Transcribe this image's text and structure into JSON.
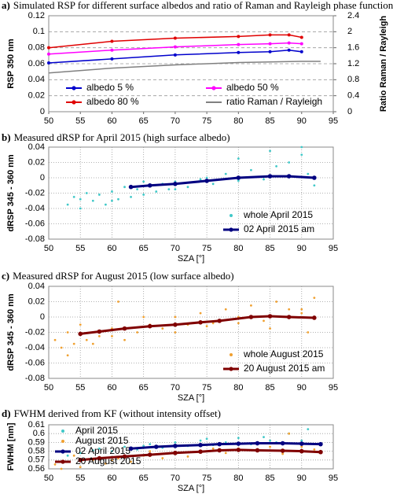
{
  "chart_data": [
    {
      "type": "line",
      "panel_label": "a)",
      "title": "Simulated RSP for different surface albedos and ratio of Raman and Rayleigh phase functions",
      "ylabel": "RSP 350 nm",
      "y2label": "Ratio Raman / Rayleigh",
      "xlim": [
        50,
        95
      ],
      "xticks": [
        50,
        55,
        60,
        65,
        70,
        75,
        80,
        85,
        90,
        95
      ],
      "ylim": [
        0,
        0.12
      ],
      "yticks": [
        0,
        0.02,
        0.04,
        0.06,
        0.08,
        0.1,
        0.12
      ],
      "y2lim": [
        0,
        2.4
      ],
      "y2ticks": [
        0,
        0.4,
        0.8,
        1.2,
        1.6,
        2,
        2.4
      ],
      "grid": "y",
      "legend": "lower center",
      "series": [
        {
          "name": "albedo 5 %",
          "color": "#0000cc",
          "style": "line",
          "markers": true,
          "x": [
            50,
            60,
            70,
            80,
            85,
            88,
            90
          ],
          "values": [
            0.061,
            0.066,
            0.071,
            0.074,
            0.075,
            0.077,
            0.075
          ]
        },
        {
          "name": "albedo 50 %",
          "color": "#ff00ff",
          "style": "line",
          "markers": true,
          "x": [
            50,
            60,
            70,
            80,
            85,
            88,
            90
          ],
          "values": [
            0.072,
            0.077,
            0.081,
            0.084,
            0.085,
            0.086,
            0.085
          ]
        },
        {
          "name": "albedo 80 %",
          "color": "#e00000",
          "style": "line",
          "markers": true,
          "x": [
            50,
            60,
            70,
            80,
            85,
            88,
            90
          ],
          "values": [
            0.08,
            0.088,
            0.092,
            0.094,
            0.096,
            0.096,
            0.093
          ]
        },
        {
          "name": "ratio Raman / Rayleigh",
          "color": "#808080",
          "style": "line",
          "markers": false,
          "axis": "y2",
          "x": [
            50,
            60,
            70,
            80,
            90,
            93
          ],
          "values": [
            0.97,
            1.09,
            1.17,
            1.23,
            1.26,
            1.26
          ]
        }
      ]
    },
    {
      "type": "scatter",
      "panel_label": "b)",
      "title": "Measured dRSP for April 2015 (high surface albedo)",
      "ylabel": "dRSP 345 - 360 nm",
      "xlabel": "SZA [°]",
      "xlim": [
        50,
        95
      ],
      "xticks": [
        50,
        55,
        60,
        65,
        70,
        75,
        80,
        85,
        90,
        95
      ],
      "ylim": [
        -0.08,
        0.04
      ],
      "yticks": [
        -0.08,
        -0.06,
        -0.04,
        -0.02,
        0,
        0.02,
        0.04
      ],
      "grid": "both",
      "legend": "lower right",
      "series": [
        {
          "name": "whole April 2015",
          "color": "#40c8c8",
          "style": "points",
          "x": [
            53,
            54,
            55,
            56,
            57,
            58,
            59,
            60,
            61,
            62,
            63,
            64,
            65,
            66,
            67,
            68,
            69,
            70,
            72,
            74,
            76,
            78,
            80,
            82,
            84,
            86,
            88,
            90,
            91,
            92,
            55,
            60,
            65,
            70,
            75,
            80,
            85,
            90
          ],
          "values": [
            -0.035,
            -0.025,
            -0.04,
            -0.02,
            -0.03,
            -0.022,
            -0.035,
            -0.018,
            -0.028,
            -0.012,
            -0.025,
            -0.015,
            -0.022,
            -0.01,
            -0.018,
            -0.008,
            -0.015,
            -0.005,
            -0.012,
            -0.002,
            -0.008,
            0.005,
            -0.004,
            0.01,
            -0.002,
            0.015,
            0.02,
            0.03,
            0.005,
            -0.01,
            -0.028,
            -0.03,
            -0.005,
            -0.015,
            0,
            0.025,
            0.035,
            0.04
          ]
        },
        {
          "name": "02 April 2015 am",
          "color": "#000080",
          "style": "line",
          "markers": true,
          "x": [
            63,
            66,
            70,
            75,
            80,
            85,
            88,
            92
          ],
          "values": [
            -0.012,
            -0.01,
            -0.008,
            -0.004,
            0,
            0.002,
            0.002,
            0
          ]
        }
      ]
    },
    {
      "type": "scatter",
      "panel_label": "c)",
      "title": "Measured dRSP for August 2015 (low surface albedo)",
      "ylabel": "dRSP 345 - 360 nm",
      "xlabel": "SZA [°]",
      "xlim": [
        50,
        95
      ],
      "xticks": [
        50,
        55,
        60,
        65,
        70,
        75,
        80,
        85,
        90,
        95
      ],
      "ylim": [
        -0.08,
        0.04
      ],
      "yticks": [
        -0.08,
        -0.06,
        -0.04,
        -0.02,
        0,
        0.02,
        0.04
      ],
      "grid": "both",
      "legend": "lower right",
      "series": [
        {
          "name": "whole August 2015",
          "color": "#f0a030",
          "style": "points",
          "x": [
            51,
            52,
            53,
            54,
            55,
            56,
            58,
            60,
            61,
            62,
            64,
            66,
            68,
            70,
            72,
            74,
            76,
            78,
            80,
            82,
            84,
            86,
            88,
            90,
            91,
            92,
            53,
            57,
            60,
            65,
            70,
            75,
            80,
            85,
            90
          ],
          "values": [
            -0.03,
            -0.04,
            -0.02,
            -0.035,
            -0.01,
            -0.03,
            -0.025,
            -0.015,
            0.02,
            -0.03,
            -0.02,
            -0.01,
            -0.015,
            0,
            -0.01,
            0.005,
            -0.008,
            0.01,
            0,
            0.015,
            -0.005,
            0.02,
            0.01,
            0.005,
            -0.02,
            0.025,
            -0.05,
            -0.035,
            -0.025,
            0,
            -0.02,
            -0.012,
            -0.008,
            -0.015,
            0.01
          ]
        },
        {
          "name": "20 August 2015 am",
          "color": "#800000",
          "style": "line",
          "markers": true,
          "x": [
            55,
            58,
            62,
            66,
            70,
            74,
            77,
            82,
            85,
            88,
            92
          ],
          "values": [
            -0.022,
            -0.019,
            -0.015,
            -0.012,
            -0.01,
            -0.007,
            -0.005,
            0,
            0.001,
            0,
            -0.001
          ]
        }
      ]
    },
    {
      "type": "scatter",
      "panel_label": "d)",
      "title": "FWHM derived from KF (without intensity offset)",
      "ylabel": "FWHM [nm]",
      "xlabel": "SZA [°]",
      "xlim": [
        50,
        95
      ],
      "xticks": [
        50,
        55,
        60,
        65,
        70,
        75,
        80,
        85,
        90,
        95
      ],
      "ylim": [
        0.56,
        0.61
      ],
      "yticks": [
        0.56,
        0.57,
        0.58,
        0.59,
        0.6,
        0.61
      ],
      "grid": "both",
      "legend": "upper left",
      "series": [
        {
          "name": "April 2015",
          "color": "#40c8c8",
          "style": "points",
          "x": [
            53,
            55,
            57,
            60,
            62,
            64,
            66,
            68,
            70,
            72,
            74,
            76,
            78,
            80,
            82,
            84,
            86,
            88,
            90,
            92,
            58,
            65,
            75,
            85,
            91
          ],
          "values": [
            0.575,
            0.578,
            0.581,
            0.58,
            0.585,
            0.582,
            0.588,
            0.584,
            0.59,
            0.586,
            0.592,
            0.587,
            0.59,
            0.595,
            0.588,
            0.596,
            0.59,
            0.6,
            0.592,
            0.588,
            0.583,
            0.586,
            0.594,
            0.592,
            0.605
          ]
        },
        {
          "name": "August 2015",
          "color": "#f0a030",
          "style": "points",
          "x": [
            51,
            52,
            53,
            55,
            57,
            59,
            61,
            63,
            65,
            68,
            70,
            72,
            75,
            78,
            80,
            83,
            85,
            87,
            90,
            92,
            54,
            60,
            66,
            76,
            88
          ],
          "values": [
            0.565,
            0.56,
            0.568,
            0.562,
            0.57,
            0.566,
            0.572,
            0.568,
            0.575,
            0.572,
            0.578,
            0.574,
            0.58,
            0.578,
            0.583,
            0.58,
            0.585,
            0.577,
            0.585,
            0.582,
            0.575,
            0.57,
            0.58,
            0.583,
            0.6
          ]
        },
        {
          "name": "02 April 2015",
          "color": "#000080",
          "style": "line",
          "markers": true,
          "x": [
            63,
            67,
            70,
            74,
            77,
            80,
            83,
            87,
            90,
            93
          ],
          "values": [
            0.583,
            0.585,
            0.586,
            0.587,
            0.588,
            0.5885,
            0.589,
            0.589,
            0.5885,
            0.588
          ]
        },
        {
          "name": "20 August 2015",
          "color": "#800000",
          "style": "line",
          "markers": true,
          "x": [
            55,
            58,
            62,
            66,
            70,
            74,
            77,
            80,
            83,
            87,
            90,
            93
          ],
          "values": [
            0.57,
            0.572,
            0.574,
            0.576,
            0.578,
            0.5795,
            0.581,
            0.5815,
            0.581,
            0.5805,
            0.58,
            0.579
          ]
        }
      ]
    }
  ]
}
